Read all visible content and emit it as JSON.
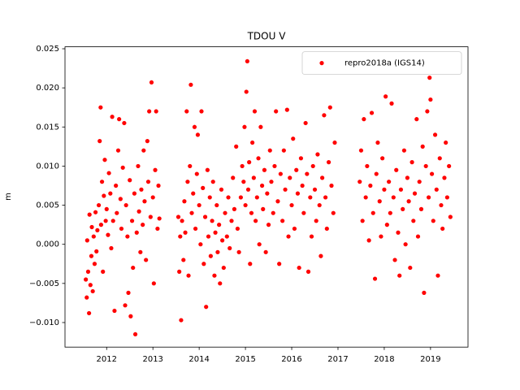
{
  "chart_data": {
    "type": "scatter",
    "title": "TDOU V",
    "y_label": "m",
    "xlim": [
      2011.1,
      2019.81
    ],
    "ylim": [
      -0.01314,
      0.02525
    ],
    "xticks": [
      2012,
      2013,
      2014,
      2015,
      2016,
      2017,
      2018,
      2019
    ],
    "yticks": [
      {
        "value": -0.01,
        "label": "−0.010"
      },
      {
        "value": -0.005,
        "label": "−0.005"
      },
      {
        "value": 0,
        "label": "0.000"
      },
      {
        "value": 0.005,
        "label": "0.005"
      },
      {
        "value": 0.01,
        "label": "0.010"
      },
      {
        "value": 0.015,
        "label": "0.015"
      },
      {
        "value": 0.02,
        "label": "0.020"
      },
      {
        "value": 0.025,
        "label": "0.025"
      }
    ],
    "legend": "upper right",
    "series": [
      {
        "name": "repro2018a (IGS14)",
        "color": "#ff0000",
        "x": [
          2011.55,
          2011.57,
          2011.58,
          2011.6,
          2011.62,
          2011.63,
          2011.65,
          2011.67,
          2011.68,
          2011.7,
          2011.72,
          2011.74,
          2011.76,
          2011.78,
          2011.8,
          2011.83,
          2011.85,
          2011.87,
          2011.88,
          2011.9,
          2011.92,
          2011.94,
          2011.96,
          2011.98,
          2012.0,
          2012.03,
          2012.05,
          2012.08,
          2012.1,
          2012.12,
          2012.14,
          2012.17,
          2012.2,
          2012.22,
          2012.25,
          2012.27,
          2012.3,
          2012.32,
          2012.35,
          2012.38,
          2012.4,
          2012.42,
          2012.45,
          2012.47,
          2012.5,
          2012.52,
          2012.55,
          2012.57,
          2012.6,
          2012.62,
          2012.65,
          2012.68,
          2012.7,
          2012.73,
          2012.75,
          2012.78,
          2012.8,
          2012.82,
          2012.85,
          2012.88,
          2012.9,
          2012.92,
          2012.95,
          2012.97,
          2013.0,
          2013.02,
          2013.05,
          2013.07,
          2013.1,
          2013.12,
          2013.14,
          2013.55,
          2013.57,
          2013.59,
          2013.61,
          2013.63,
          2013.66,
          2013.68,
          2013.7,
          2013.73,
          2013.75,
          2013.77,
          2013.8,
          2013.82,
          2013.84,
          2013.87,
          2013.9,
          2013.92,
          2013.95,
          2013.97,
          2014.0,
          2014.03,
          2014.05,
          2014.08,
          2014.1,
          2014.13,
          2014.15,
          2014.18,
          2014.2,
          2014.23,
          2014.25,
          2014.28,
          2014.3,
          2014.33,
          2014.35,
          2014.38,
          2014.4,
          2014.43,
          2014.45,
          2014.48,
          2014.5,
          2014.53,
          2014.56,
          2014.6,
          2014.63,
          2014.66,
          2014.7,
          2014.73,
          2014.76,
          2014.8,
          2014.83,
          2014.86,
          2014.9,
          2014.93,
          2014.96,
          2014.98,
          2015.0,
          2015.02,
          2015.04,
          2015.06,
          2015.08,
          2015.1,
          2015.13,
          2015.15,
          2015.18,
          2015.2,
          2015.22,
          2015.25,
          2015.28,
          2015.3,
          2015.33,
          2015.36,
          2015.38,
          2015.41,
          2015.44,
          2015.47,
          2015.5,
          2015.53,
          2015.56,
          2015.6,
          2015.63,
          2015.66,
          2015.7,
          2015.73,
          2015.76,
          2015.8,
          2015.83,
          2015.86,
          2015.9,
          2015.93,
          2015.96,
          2016.0,
          2016.03,
          2016.06,
          2016.1,
          2016.13,
          2016.16,
          2016.2,
          2016.23,
          2016.26,
          2016.3,
          2016.33,
          2016.36,
          2016.4,
          2016.43,
          2016.46,
          2016.5,
          2016.53,
          2016.56,
          2016.6,
          2016.63,
          2016.66,
          2016.7,
          2016.73,
          2016.76,
          2016.8,
          2016.83,
          2016.86,
          2016.9,
          2016.93,
          2017.47,
          2017.5,
          2017.53,
          2017.56,
          2017.6,
          2017.63,
          2017.67,
          2017.7,
          2017.73,
          2017.76,
          2017.8,
          2017.83,
          2017.86,
          2017.9,
          2017.93,
          2017.96,
          2018.0,
          2018.03,
          2018.06,
          2018.1,
          2018.13,
          2018.16,
          2018.2,
          2018.23,
          2018.26,
          2018.3,
          2018.33,
          2018.36,
          2018.4,
          2018.43,
          2018.46,
          2018.5,
          2018.53,
          2018.56,
          2018.6,
          2018.63,
          2018.66,
          2018.7,
          2018.73,
          2018.76,
          2018.8,
          2018.83,
          2018.86,
          2018.9,
          2018.93,
          2018.96,
          2018.98,
          2019.0,
          2019.03,
          2019.06,
          2019.1,
          2019.13,
          2019.16,
          2019.2,
          2019.23,
          2019.26,
          2019.3,
          2019.33,
          2019.36,
          2019.4,
          2019.43
        ],
        "values": [
          -0.0045,
          -0.0068,
          0.0005,
          -0.0035,
          -0.0088,
          0.0038,
          -0.0052,
          -0.0015,
          0.0022,
          -0.006,
          0.001,
          -0.0025,
          0.0041,
          -0.0009,
          0.0018,
          0.005,
          0.0132,
          0.0175,
          0.0025,
          0.008,
          -0.0035,
          0.0062,
          0.0108,
          0.003,
          0.0045,
          0.0012,
          0.0091,
          0.0065,
          -0.0005,
          0.0163,
          0.003,
          -0.0085,
          0.0075,
          0.004,
          0.012,
          0.016,
          0.0058,
          0.002,
          0.0098,
          0.0155,
          -0.0078,
          0.005,
          0.001,
          -0.0062,
          0.0082,
          -0.0092,
          0.003,
          -0.003,
          0.0065,
          -0.0115,
          0.0015,
          0.01,
          0.0042,
          -0.001,
          0.007,
          0.0025,
          0.012,
          0.0055,
          -0.002,
          0.0132,
          0.008,
          0.017,
          0.0035,
          0.0207,
          0.006,
          -0.005,
          0.0095,
          0.017,
          0.002,
          0.0075,
          0.0033,
          0.0035,
          -0.0035,
          0.001,
          -0.0097,
          0.003,
          -0.002,
          0.0055,
          0.0015,
          0.017,
          0.008,
          -0.004,
          0.01,
          0.0204,
          0.004,
          0.0065,
          0.015,
          0.002,
          0.009,
          0.014,
          0.005,
          0.0,
          0.017,
          0.0072,
          -0.0025,
          0.0035,
          -0.008,
          0.0095,
          0.001,
          0.006,
          -0.0015,
          0.003,
          0.008,
          -0.004,
          0.0015,
          0.005,
          -0.001,
          0.0025,
          -0.005,
          0.007,
          0.0005,
          -0.003,
          0.004,
          0.001,
          0.006,
          -0.0005,
          0.003,
          0.0085,
          0.0045,
          0.0125,
          0.002,
          -0.001,
          0.006,
          0.01,
          0.008,
          0.015,
          0.005,
          0.0195,
          0.0234,
          0.007,
          0.0105,
          -0.0025,
          0.004,
          0.013,
          0.0085,
          0.017,
          0.003,
          0.006,
          0.011,
          0.0,
          0.015,
          0.0075,
          0.0045,
          0.0095,
          -0.001,
          0.0065,
          0.0025,
          0.012,
          0.008,
          0.004,
          0.01,
          0.017,
          0.0055,
          -0.0025,
          0.009,
          0.003,
          0.012,
          0.007,
          0.0172,
          0.001,
          0.0085,
          0.005,
          0.0135,
          0.002,
          0.0095,
          0.0065,
          -0.003,
          0.011,
          0.0075,
          0.004,
          0.0155,
          0.009,
          -0.0035,
          0.006,
          0.001,
          0.01,
          0.007,
          0.003,
          0.0115,
          0.005,
          -0.0015,
          0.0085,
          0.0165,
          0.006,
          0.002,
          0.0105,
          0.0175,
          0.0075,
          0.004,
          0.013,
          0.008,
          0.012,
          0.003,
          0.016,
          0.006,
          0.01,
          0.0005,
          0.0075,
          0.0168,
          0.004,
          -0.0044,
          0.009,
          0.013,
          0.0055,
          0.001,
          0.011,
          0.007,
          0.0189,
          0.0025,
          0.008,
          0.004,
          0.018,
          0.006,
          -0.002,
          0.0095,
          0.0015,
          -0.004,
          0.007,
          0.0045,
          0.012,
          0.0,
          0.0085,
          0.0055,
          -0.003,
          0.0105,
          0.003,
          0.0065,
          0.016,
          0.001,
          0.008,
          0.0045,
          0.0125,
          -0.0062,
          0.01,
          0.017,
          0.006,
          0.0213,
          0.0185,
          0.009,
          0.003,
          0.014,
          0.007,
          -0.004,
          0.011,
          0.005,
          0.002,
          0.0085,
          0.013,
          0.006,
          0.01,
          0.0035
        ]
      }
    ]
  }
}
